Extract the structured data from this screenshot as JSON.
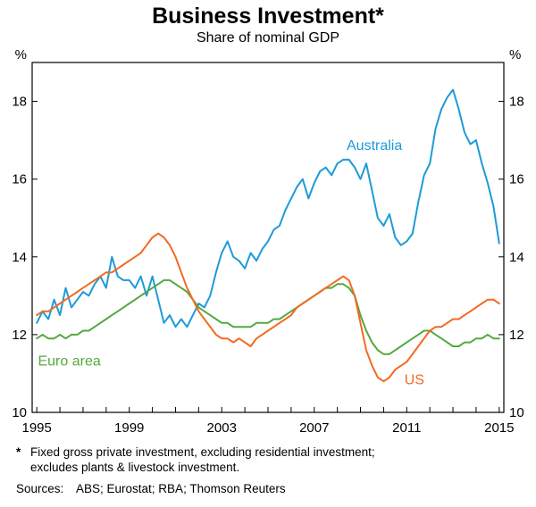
{
  "header": {
    "title": "Business Investment*",
    "subtitle": "Share of nominal GDP"
  },
  "chart_data": {
    "type": "line",
    "title": "Business Investment*",
    "subtitle": "Share of nominal GDP",
    "unit_label": "%",
    "xlim": [
      1994.8,
      2015.2
    ],
    "ylim": [
      10,
      19
    ],
    "yticks": [
      10,
      12,
      14,
      16,
      18
    ],
    "xtick_labels": [
      1995,
      1999,
      2003,
      2007,
      2011,
      2015
    ],
    "x_start": 1995,
    "x_step": 0.25,
    "grid": false,
    "legend_position": "inline-labels",
    "axis_color": "#000000",
    "series": [
      {
        "name": "Australia",
        "color": "#1d9bd8",
        "label_pos": [
          2008.4,
          16.75
        ],
        "values": [
          12.3,
          12.6,
          12.4,
          12.9,
          12.5,
          13.2,
          12.7,
          12.9,
          13.1,
          13.0,
          13.3,
          13.5,
          13.2,
          14.0,
          13.5,
          13.4,
          13.4,
          13.2,
          13.5,
          13.0,
          13.5,
          12.9,
          12.3,
          12.5,
          12.2,
          12.4,
          12.2,
          12.5,
          12.8,
          12.7,
          13.0,
          13.6,
          14.1,
          14.4,
          14.0,
          13.9,
          13.7,
          14.1,
          13.9,
          14.2,
          14.4,
          14.7,
          14.8,
          15.2,
          15.5,
          15.8,
          16.0,
          15.5,
          15.9,
          16.2,
          16.3,
          16.1,
          16.4,
          16.5,
          16.5,
          16.3,
          16.0,
          16.4,
          15.7,
          15.0,
          14.8,
          15.1,
          14.5,
          14.3,
          14.4,
          14.6,
          15.4,
          16.1,
          16.4,
          17.3,
          17.8,
          18.1,
          18.3,
          17.8,
          17.2,
          16.9,
          17.0,
          16.4,
          15.9,
          15.3,
          14.35
        ]
      },
      {
        "name": "Euro area",
        "color": "#55a83f",
        "label_pos": [
          1995.05,
          11.2
        ],
        "values": [
          11.9,
          12.0,
          11.9,
          11.9,
          12.0,
          11.9,
          12.0,
          12.0,
          12.1,
          12.1,
          12.2,
          12.3,
          12.4,
          12.5,
          12.6,
          12.7,
          12.8,
          12.9,
          13.0,
          13.1,
          13.2,
          13.3,
          13.4,
          13.4,
          13.3,
          13.2,
          13.1,
          12.9,
          12.7,
          12.6,
          12.5,
          12.4,
          12.3,
          12.3,
          12.2,
          12.2,
          12.2,
          12.2,
          12.3,
          12.3,
          12.3,
          12.4,
          12.4,
          12.5,
          12.6,
          12.7,
          12.8,
          12.9,
          13.0,
          13.1,
          13.2,
          13.2,
          13.3,
          13.3,
          13.2,
          13.0,
          12.5,
          12.1,
          11.8,
          11.6,
          11.5,
          11.5,
          11.6,
          11.7,
          11.8,
          11.9,
          12.0,
          12.1,
          12.1,
          12.0,
          11.9,
          11.8,
          11.7,
          11.7,
          11.8,
          11.8,
          11.9,
          11.9,
          12.0,
          11.9,
          11.9
        ]
      },
      {
        "name": "US",
        "color": "#f26a21",
        "label_pos": [
          2010.9,
          10.72
        ],
        "values": [
          12.5,
          12.6,
          12.6,
          12.7,
          12.8,
          12.9,
          13.0,
          13.1,
          13.2,
          13.3,
          13.4,
          13.5,
          13.6,
          13.6,
          13.7,
          13.8,
          13.9,
          14.0,
          14.1,
          14.3,
          14.5,
          14.6,
          14.5,
          14.3,
          14.0,
          13.6,
          13.2,
          12.9,
          12.6,
          12.4,
          12.2,
          12.0,
          11.9,
          11.9,
          11.8,
          11.9,
          11.8,
          11.7,
          11.9,
          12.0,
          12.1,
          12.2,
          12.3,
          12.4,
          12.5,
          12.7,
          12.8,
          12.9,
          13.0,
          13.1,
          13.2,
          13.3,
          13.4,
          13.5,
          13.4,
          13.0,
          12.3,
          11.6,
          11.2,
          10.9,
          10.8,
          10.9,
          11.1,
          11.2,
          11.3,
          11.5,
          11.7,
          11.9,
          12.1,
          12.2,
          12.2,
          12.3,
          12.4,
          12.4,
          12.5,
          12.6,
          12.7,
          12.8,
          12.9,
          12.9,
          12.8
        ]
      }
    ]
  },
  "footnote": {
    "marker": "*",
    "line1": "Fixed gross private investment, excluding residential investment;",
    "line2": "excludes plants & livestock investment."
  },
  "sources": {
    "label": "Sources:",
    "text": "ABS; Eurostat; RBA; Thomson Reuters"
  }
}
